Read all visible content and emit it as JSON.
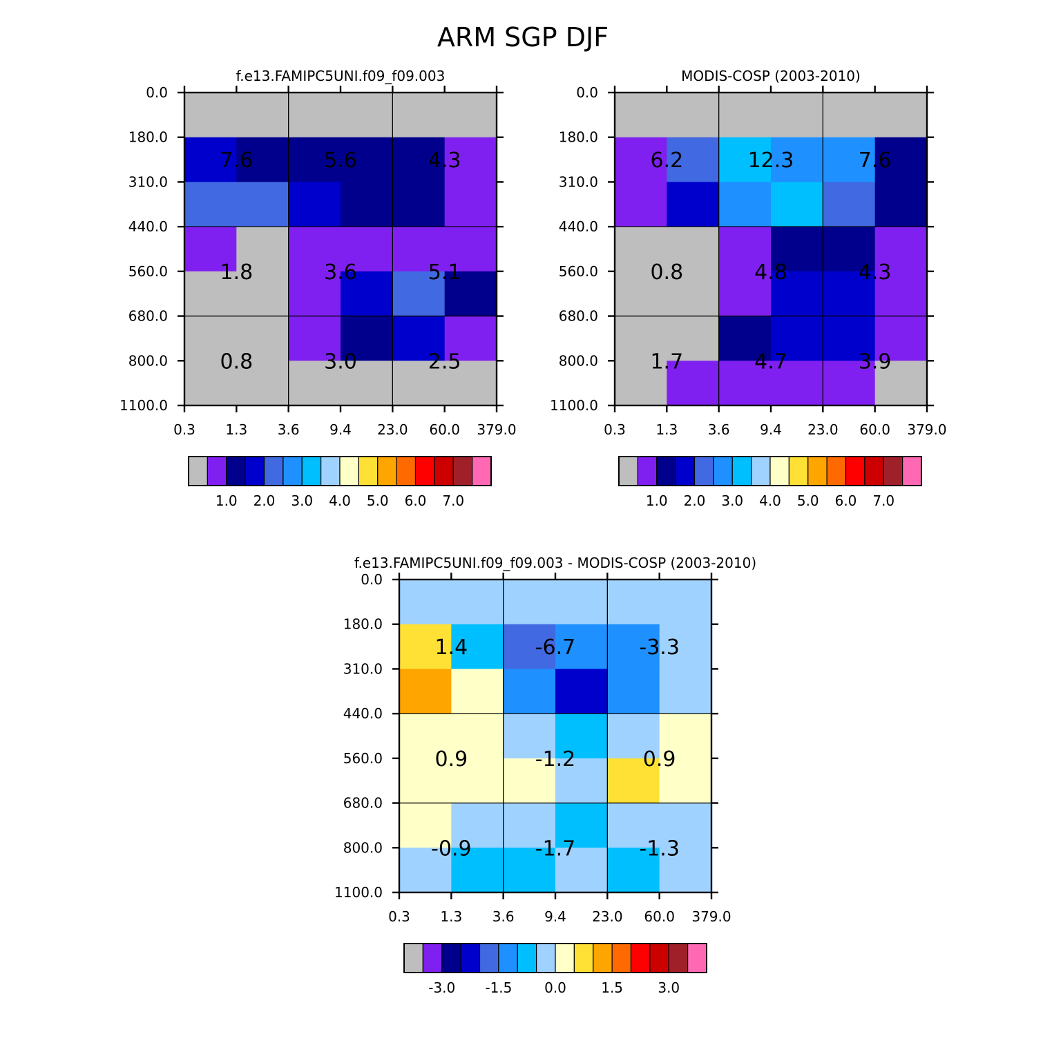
{
  "title": "ARM SGP DJF",
  "x_tick_labels": [
    "0.3",
    "1.3",
    "3.6",
    "9.4",
    "23.0",
    "60.0",
    "379.0"
  ],
  "y_tick_labels": [
    "0.0",
    "180.0",
    "310.0",
    "440.0",
    "560.0",
    "680.0",
    "800.0",
    "1100.0"
  ],
  "colors": {
    "missing": "#BEBEBE",
    "palette": [
      "#BEBEBE",
      "#8020F0",
      "#00008C",
      "#0000CD",
      "#4169E1",
      "#1E90FF",
      "#00BFFF",
      "#A0D2FF",
      "#FFFFC8",
      "#FFE135",
      "#FFA500",
      "#FF6A00",
      "#FF0000",
      "#CD0000",
      "#A0202A",
      "#FF69B4"
    ]
  },
  "chart_data": [
    {
      "type": "heatmap",
      "title": "f.e13.FAMIPC5UNI.f09_f09.003",
      "xlabel": "",
      "ylabel": "",
      "rows_top_to_bottom_color_index": [
        [
          0,
          0,
          0,
          0,
          0,
          0
        ],
        [
          3,
          2,
          2,
          2,
          2,
          1
        ],
        [
          4,
          4,
          3,
          2,
          2,
          1
        ],
        [
          1,
          0,
          1,
          1,
          1,
          1
        ],
        [
          0,
          0,
          1,
          3,
          4,
          2
        ],
        [
          0,
          0,
          1,
          2,
          3,
          1
        ],
        [
          0,
          0,
          0,
          0,
          0,
          0
        ]
      ],
      "annotations": [
        "7.6",
        "5.6",
        "4.3",
        "1.8",
        "3.6",
        "5.1",
        "0.8",
        "3.0",
        "2.5"
      ],
      "colorbar_labels": [
        "1.0",
        "2.0",
        "3.0",
        "4.0",
        "5.0",
        "6.0",
        "7.0"
      ]
    },
    {
      "type": "heatmap",
      "title": "MODIS-COSP (2003-2010)",
      "xlabel": "",
      "ylabel": "",
      "rows_top_to_bottom_color_index": [
        [
          0,
          0,
          0,
          0,
          0,
          0
        ],
        [
          1,
          4,
          6,
          5,
          5,
          2
        ],
        [
          1,
          3,
          5,
          6,
          4,
          2
        ],
        [
          0,
          0,
          1,
          2,
          2,
          1
        ],
        [
          0,
          0,
          1,
          3,
          3,
          1
        ],
        [
          0,
          0,
          2,
          3,
          3,
          1
        ],
        [
          0,
          1,
          1,
          1,
          1,
          0
        ]
      ],
      "annotations": [
        "6.2",
        "12.3",
        "7.6",
        "0.8",
        "4.8",
        "4.3",
        "1.7",
        "4.7",
        "3.9"
      ],
      "colorbar_labels": [
        "1.0",
        "2.0",
        "3.0",
        "4.0",
        "5.0",
        "6.0",
        "7.0"
      ]
    },
    {
      "type": "heatmap",
      "title": "f.e13.FAMIPC5UNI.f09_f09.003 - MODIS-COSP (2003-2010)",
      "xlabel": "",
      "ylabel": "",
      "rows_top_to_bottom_color_index": [
        [
          7,
          7,
          7,
          7,
          7,
          7
        ],
        [
          9,
          6,
          4,
          5,
          5,
          7
        ],
        [
          10,
          8,
          5,
          3,
          5,
          7
        ],
        [
          8,
          8,
          7,
          6,
          7,
          8
        ],
        [
          8,
          8,
          8,
          7,
          9,
          8
        ],
        [
          8,
          7,
          7,
          6,
          7,
          7
        ],
        [
          7,
          6,
          6,
          7,
          6,
          7
        ]
      ],
      "annotations": [
        "1.4",
        "-6.7",
        "-3.3",
        "0.9",
        "-1.2",
        "0.9",
        "-0.9",
        "-1.7",
        "-1.3"
      ],
      "colorbar_labels": [
        "-3.0",
        "-1.5",
        "0.0",
        "1.5",
        "3.0"
      ]
    }
  ]
}
